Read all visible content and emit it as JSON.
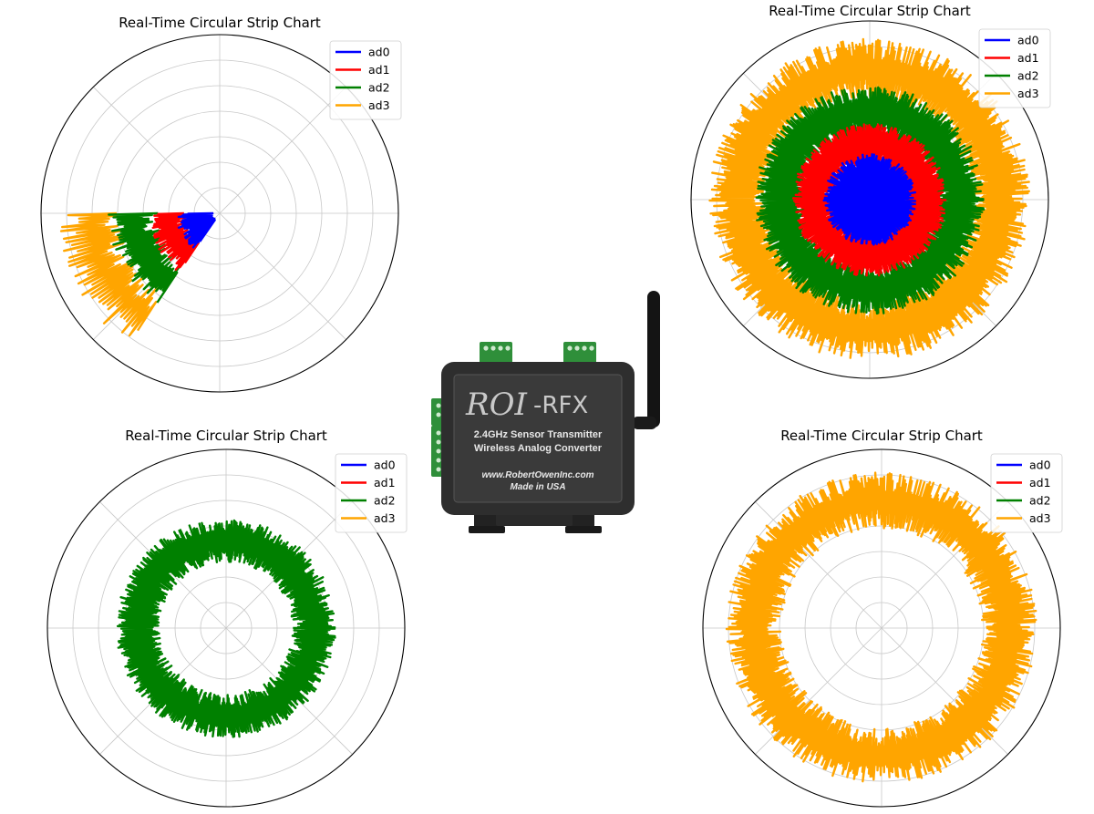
{
  "chart_data": [
    {
      "type": "polar-line",
      "title": "Real-Time Circular Strip Chart",
      "legend_position": "top-right",
      "rlim": [
        0,
        14
      ],
      "grid": true,
      "angle_span_deg": [
        180,
        235
      ],
      "series": [
        {
          "name": "ad0",
          "color": "#0000ff",
          "r_min": 0.5,
          "r_max": 3.4,
          "frequency": 1.4
        },
        {
          "name": "ad1",
          "color": "#ff0000",
          "r_min": 2.6,
          "r_max": 5.6,
          "frequency": 1.4
        },
        {
          "name": "ad2",
          "color": "#008000",
          "r_min": 4.8,
          "r_max": 8.8,
          "frequency": 1.4
        },
        {
          "name": "ad3",
          "color": "#ffa500",
          "r_min": 7.6,
          "r_max": 12.6,
          "frequency": 1.4
        }
      ]
    },
    {
      "type": "polar-line",
      "title": "Real-Time Circular Strip Chart",
      "legend_position": "top-right",
      "rlim": [
        0,
        14
      ],
      "grid": true,
      "angle_span_deg": [
        0,
        360
      ],
      "series": [
        {
          "name": "ad0",
          "color": "#0000ff",
          "r_min": 0.0,
          "r_max": 3.6,
          "frequency": 3
        },
        {
          "name": "ad1",
          "color": "#ff0000",
          "r_min": 2.8,
          "r_max": 6.0,
          "frequency": 3
        },
        {
          "name": "ad2",
          "color": "#008000",
          "r_min": 5.0,
          "r_max": 9.0,
          "frequency": 3
        },
        {
          "name": "ad3",
          "color": "#ffa500",
          "r_min": 7.8,
          "r_max": 12.6,
          "frequency": 3
        }
      ]
    },
    {
      "type": "polar-line",
      "title": "Real-Time Circular Strip Chart",
      "legend_position": "top-right",
      "rlim": [
        0,
        14
      ],
      "grid": true,
      "angle_span_deg": [
        0,
        360
      ],
      "series": [
        {
          "name": "ad0",
          "color": "#0000ff",
          "r_min": null,
          "r_max": null,
          "frequency": 3
        },
        {
          "name": "ad1",
          "color": "#ff0000",
          "r_min": null,
          "r_max": null,
          "frequency": 3
        },
        {
          "name": "ad2",
          "color": "#008000",
          "r_min": 5.2,
          "r_max": 8.6,
          "frequency": 3
        },
        {
          "name": "ad3",
          "color": "#ffa500",
          "r_min": null,
          "r_max": null,
          "frequency": 3
        }
      ]
    },
    {
      "type": "polar-line",
      "title": "Real-Time Circular Strip Chart",
      "legend_position": "top-right",
      "rlim": [
        0,
        14
      ],
      "grid": true,
      "angle_span_deg": [
        0,
        360
      ],
      "series": [
        {
          "name": "ad0",
          "color": "#0000ff",
          "r_min": null,
          "r_max": null,
          "frequency": 3
        },
        {
          "name": "ad1",
          "color": "#ff0000",
          "r_min": null,
          "r_max": null,
          "frequency": 3
        },
        {
          "name": "ad2",
          "color": "#008000",
          "r_min": null,
          "r_max": null,
          "frequency": 3
        },
        {
          "name": "ad3",
          "color": "#ffa500",
          "r_min": 7.8,
          "r_max": 12.2,
          "frequency": 3
        }
      ]
    }
  ],
  "device": {
    "brand": "ROI",
    "brand_suffix": "-RFX",
    "line1": "2.4GHz Sensor Transmitter",
    "line2": "Wireless Analog Converter",
    "url": "www.RobertOwenInc.com",
    "made": "Made in USA",
    "body_color": "#2e2e2e",
    "terminal_color": "#2f8f3a"
  }
}
